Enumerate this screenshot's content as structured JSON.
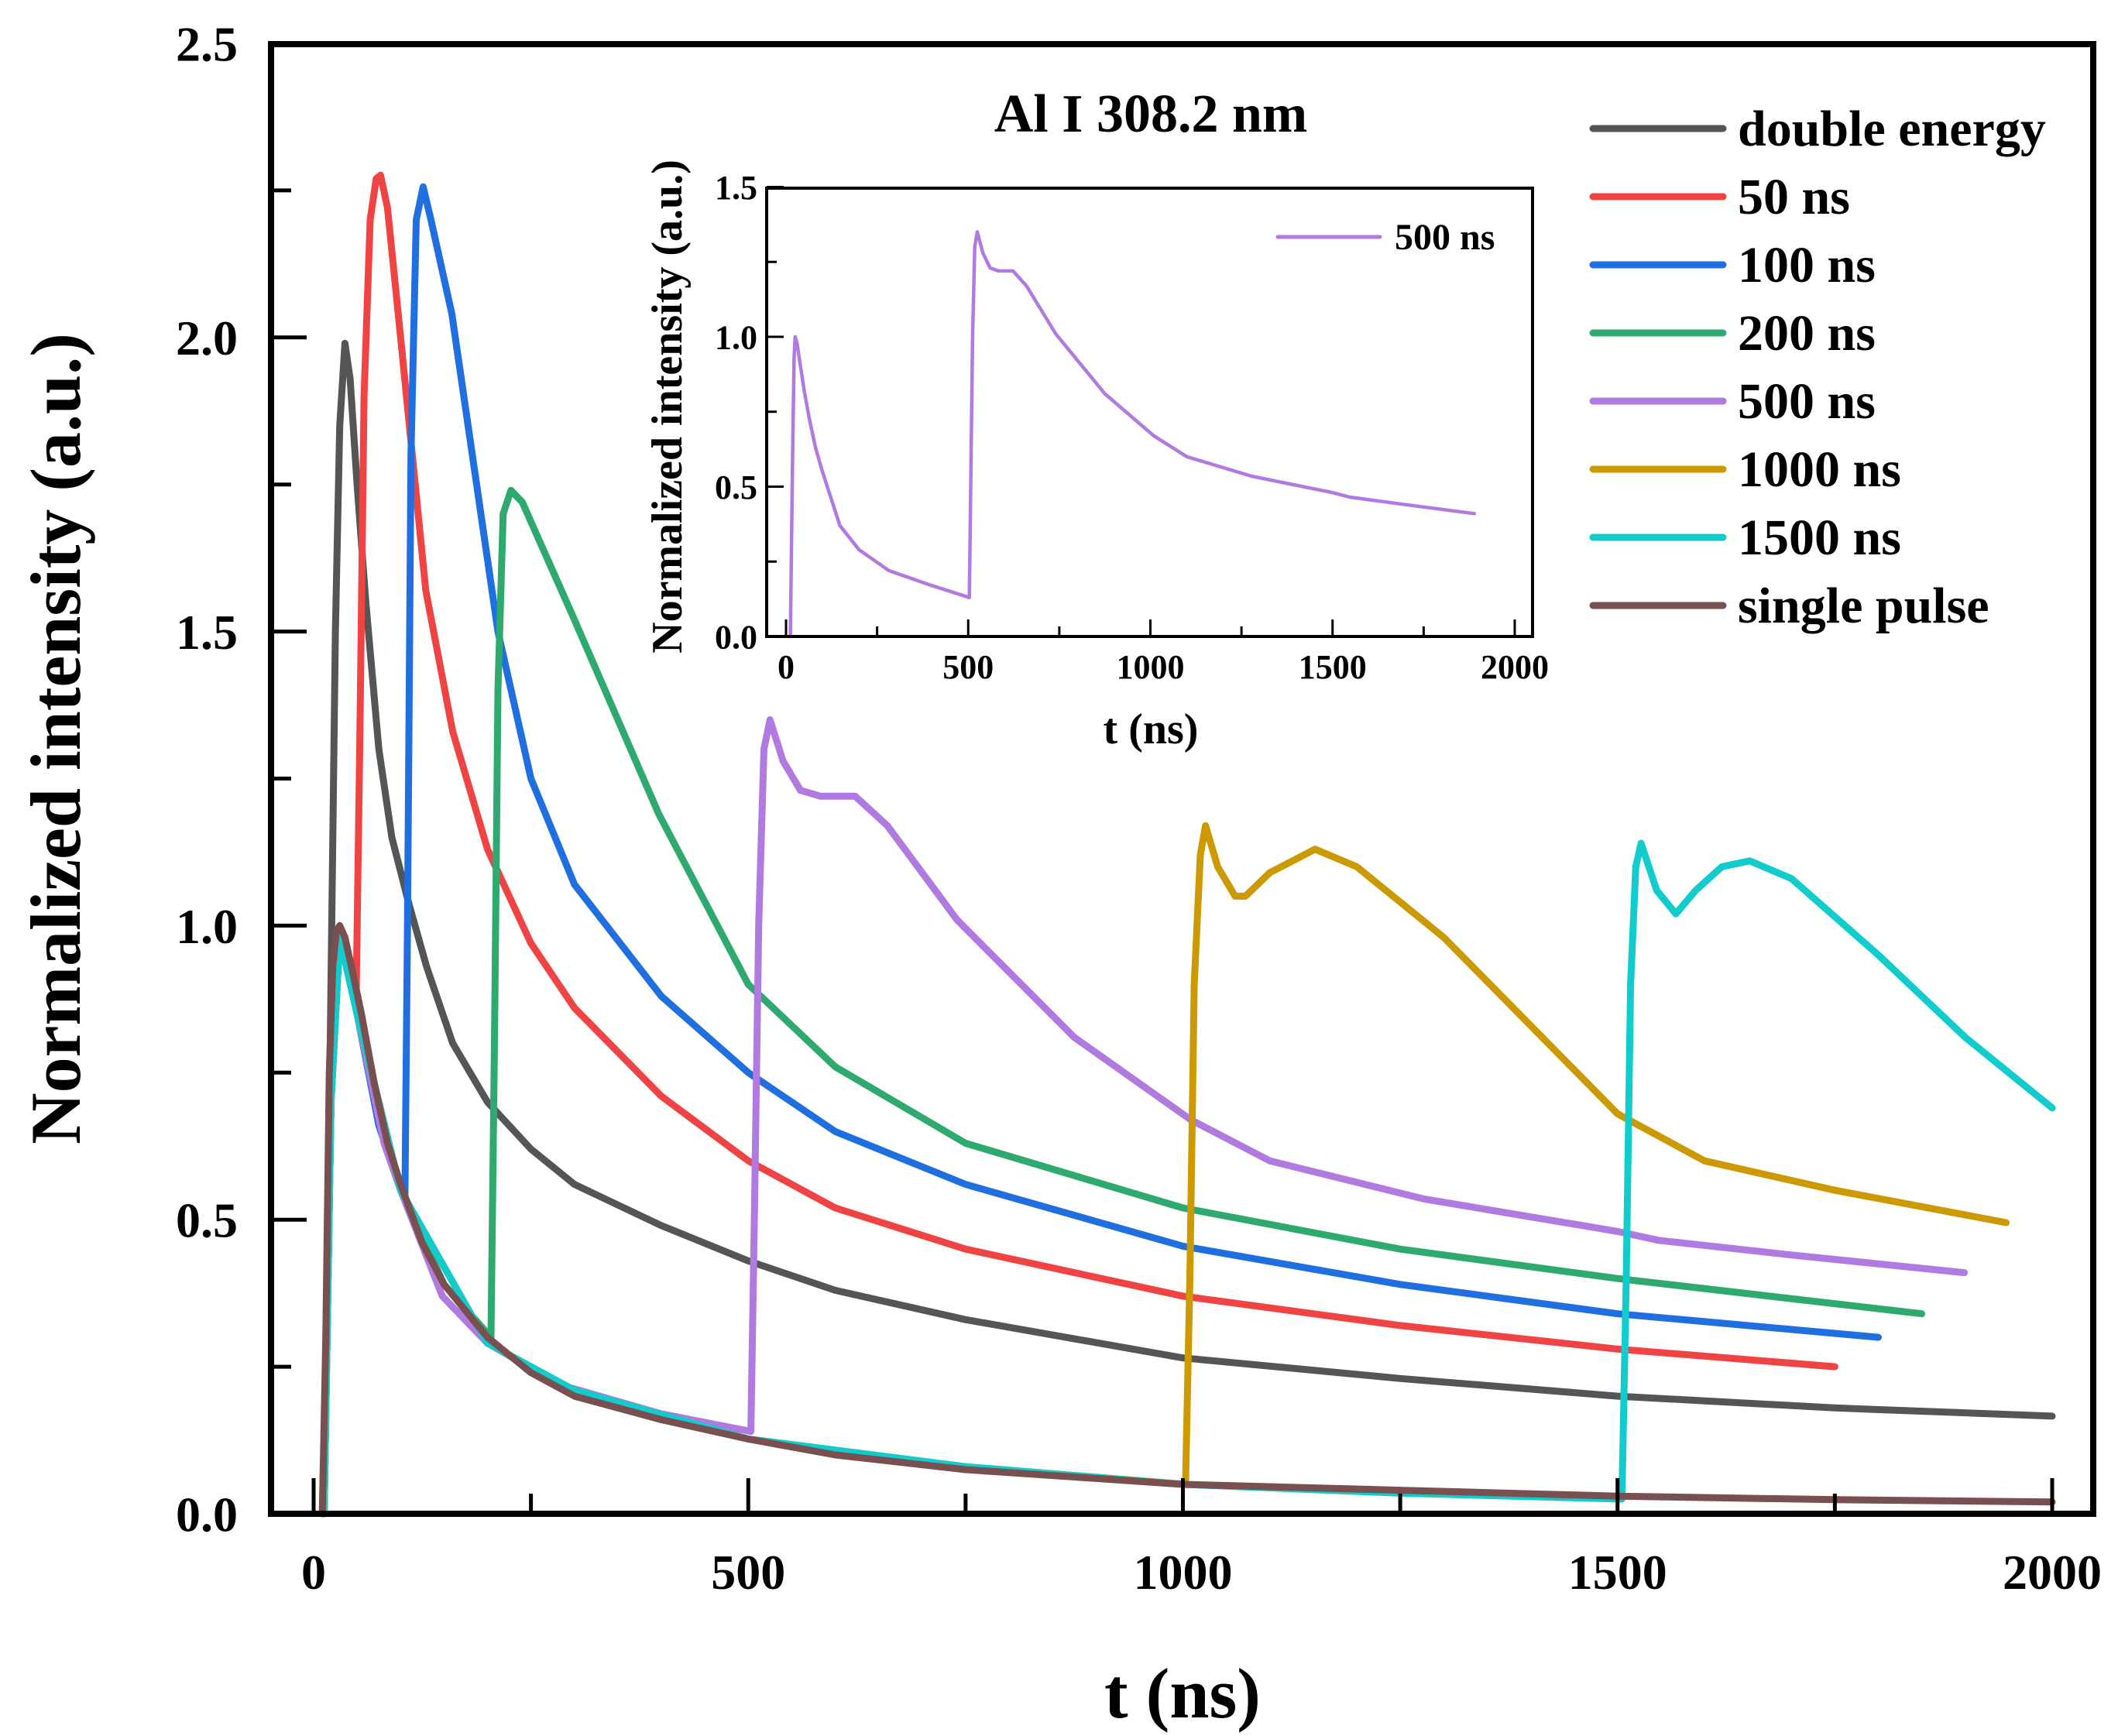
{
  "chart_data": [
    {
      "type": "line",
      "title": "Al I 308.2 nm",
      "xlabel": "t (ns)",
      "ylabel": "Normalized intensity (a.u.)",
      "xlim": [
        -50,
        2050
      ],
      "ylim": [
        0,
        2.5
      ],
      "xticks": [
        0,
        500,
        1000,
        1500,
        2000
      ],
      "xtick_labels": [
        "0",
        "500",
        "1000",
        "1500",
        "2000"
      ],
      "x_minor_ticks": [
        250,
        750,
        1250,
        1750
      ],
      "yticks": [
        0,
        0.5,
        1.0,
        1.5,
        2.0,
        2.5
      ],
      "ytick_labels": [
        "0.0",
        "0.5",
        "1.0",
        "1.5",
        "2.0",
        "2.5"
      ],
      "y_minor_ticks": [
        0.25,
        0.75,
        1.25,
        1.75,
        2.25
      ],
      "grid": false,
      "legend_position": "top-right",
      "series": [
        {
          "name": "double energy",
          "color": "#555555",
          "x": [
            10,
            15,
            20,
            25,
            30,
            36,
            42,
            50,
            60,
            75,
            90,
            109,
            130,
            160,
            200,
            250,
            300,
            400,
            500,
            600,
            750,
            1000,
            1250,
            1500,
            1750,
            2000
          ],
          "y": [
            0,
            0.3,
            0.9,
            1.5,
            1.85,
            1.99,
            1.93,
            1.75,
            1.55,
            1.3,
            1.15,
            1.04,
            0.93,
            0.8,
            0.7,
            0.62,
            0.56,
            0.49,
            0.43,
            0.38,
            0.33,
            0.265,
            0.23,
            0.2,
            0.18,
            0.166
          ]
        },
        {
          "name": "50 ns",
          "color": "#F04444",
          "x": [
            12,
            20,
            30,
            40,
            49,
            53,
            58,
            65,
            72,
            77,
            85,
            100,
            129,
            160,
            200,
            250,
            300,
            400,
            500,
            600,
            750,
            1000,
            1250,
            1500,
            1750
          ],
          "y": [
            0,
            0.7,
            0.98,
            0.95,
            0.89,
            1.3,
            1.9,
            2.2,
            2.27,
            2.276,
            2.22,
            2.0,
            1.57,
            1.33,
            1.13,
            0.97,
            0.86,
            0.71,
            0.6,
            0.52,
            0.45,
            0.37,
            0.32,
            0.28,
            0.25
          ]
        },
        {
          "name": "100 ns",
          "color": "#1F6FE0",
          "x": [
            12,
            20,
            30,
            50,
            75,
            100,
            105,
            108,
            112,
            118,
            126,
            135,
            159,
            212,
            250,
            300,
            400,
            500,
            600,
            750,
            1000,
            1250,
            1500,
            1800
          ],
          "y": [
            0,
            0.7,
            0.98,
            0.85,
            0.66,
            0.55,
            0.54,
            1.0,
            1.8,
            2.2,
            2.256,
            2.2,
            2.04,
            1.5,
            1.25,
            1.07,
            0.88,
            0.75,
            0.65,
            0.56,
            0.455,
            0.39,
            0.34,
            0.3
          ]
        },
        {
          "name": "200 ns",
          "color": "#2EAA6E",
          "x": [
            12,
            20,
            30,
            50,
            100,
            150,
            204,
            208,
            212,
            218,
            227,
            240,
            300,
            397,
            500,
            600,
            750,
            1000,
            1250,
            1500,
            1850
          ],
          "y": [
            0,
            0.7,
            0.98,
            0.85,
            0.55,
            0.39,
            0.3,
            0.8,
            1.4,
            1.7,
            1.74,
            1.72,
            1.52,
            1.19,
            0.9,
            0.76,
            0.63,
            0.52,
            0.45,
            0.4,
            0.34
          ]
        },
        {
          "name": "500 ns",
          "color": "#B07AE0",
          "x": [
            12,
            20,
            30,
            50,
            81,
            100,
            148,
            200,
            282,
            400,
            503,
            507,
            512,
            518,
            525,
            540,
            560,
            583,
            623,
            660,
            740,
            875,
            1009,
            1100,
            1278,
            1500,
            1547,
            1700,
            1899
          ],
          "y": [
            0,
            0.7,
            0.98,
            0.85,
            0.63,
            0.55,
            0.37,
            0.29,
            0.22,
            0.17,
            0.14,
            0.5,
            1.0,
            1.3,
            1.35,
            1.28,
            1.23,
            1.22,
            1.22,
            1.17,
            1.01,
            0.81,
            0.67,
            0.6,
            0.535,
            0.48,
            0.465,
            0.44,
            0.41
          ]
        },
        {
          "name": "1000 ns",
          "color": "#CC9900",
          "x": [
            12,
            20,
            30,
            50,
            100,
            200,
            300,
            500,
            750,
            1003,
            1008,
            1013,
            1020,
            1026,
            1040,
            1060,
            1072,
            1100,
            1152,
            1200,
            1300,
            1400,
            1500,
            1600,
            1750,
            1947
          ],
          "y": [
            0,
            0.7,
            0.98,
            0.85,
            0.55,
            0.29,
            0.21,
            0.127,
            0.08,
            0.05,
            0.4,
            0.9,
            1.12,
            1.17,
            1.1,
            1.05,
            1.05,
            1.09,
            1.13,
            1.1,
            0.98,
            0.83,
            0.68,
            0.6,
            0.55,
            0.495
          ]
        },
        {
          "name": "1500 ns",
          "color": "#11CCCC",
          "x": [
            12,
            20,
            30,
            50,
            100,
            200,
            300,
            500,
            750,
            1000,
            1250,
            1505,
            1510,
            1515,
            1521,
            1527,
            1545,
            1567,
            1590,
            1620,
            1652,
            1700,
            1800,
            1900,
            2000
          ],
          "y": [
            0,
            0.7,
            0.98,
            0.85,
            0.55,
            0.29,
            0.21,
            0.127,
            0.08,
            0.05,
            0.035,
            0.025,
            0.4,
            0.9,
            1.1,
            1.14,
            1.06,
            1.02,
            1.06,
            1.1,
            1.11,
            1.08,
            0.95,
            0.81,
            0.69
          ]
        },
        {
          "name": "single pulse",
          "color": "#7A4F4F",
          "x": [
            10,
            14,
            18,
            22,
            26,
            30,
            36,
            45,
            55,
            70,
            85,
            100,
            125,
            150,
            200,
            250,
            300,
            400,
            500,
            600,
            750,
            1000,
            1250,
            1500,
            1750,
            2000
          ],
          "y": [
            0,
            0.3,
            0.75,
            0.93,
            0.99,
            1.0,
            0.98,
            0.92,
            0.85,
            0.73,
            0.63,
            0.56,
            0.46,
            0.39,
            0.3,
            0.24,
            0.2,
            0.16,
            0.127,
            0.1,
            0.075,
            0.05,
            0.04,
            0.03,
            0.024,
            0.02
          ]
        }
      ]
    },
    {
      "type": "line",
      "title": "",
      "xlabel": "t (ns)",
      "ylabel": "Normalized intensity (a.u.)",
      "xlim": [
        -50,
        2050
      ],
      "ylim": [
        0,
        1.5
      ],
      "xticks": [
        0,
        500,
        1000,
        1500,
        2000
      ],
      "xtick_labels": [
        "0",
        "500",
        "1000",
        "1500",
        "2000"
      ],
      "x_minor_ticks": [
        250,
        750,
        1250,
        1750
      ],
      "yticks": [
        0,
        0.5,
        1.0,
        1.5
      ],
      "ytick_labels": [
        "0.0",
        "0.5",
        "1.0",
        "1.5"
      ],
      "y_minor_ticks": [
        0.25,
        0.75,
        1.25
      ],
      "grid": false,
      "legend_position": "top-right",
      "series": [
        {
          "name": "500 ns",
          "color": "#B07AE0",
          "x": [
            12,
            18,
            22,
            25,
            30,
            40,
            50,
            65,
            81,
            100,
            148,
            200,
            282,
            400,
            503,
            507,
            512,
            518,
            525,
            540,
            560,
            583,
            623,
            660,
            740,
            875,
            1009,
            1100,
            1278,
            1500,
            1547,
            1700,
            1889
          ],
          "y": [
            0,
            0.6,
            0.93,
            1.0,
            0.98,
            0.9,
            0.82,
            0.72,
            0.63,
            0.55,
            0.37,
            0.29,
            0.22,
            0.17,
            0.13,
            0.5,
            1.0,
            1.3,
            1.35,
            1.28,
            1.23,
            1.22,
            1.22,
            1.17,
            1.01,
            0.81,
            0.67,
            0.6,
            0.535,
            0.48,
            0.465,
            0.44,
            0.41
          ]
        }
      ]
    }
  ]
}
